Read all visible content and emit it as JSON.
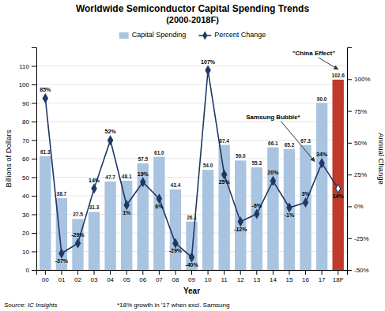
{
  "chart_data": {
    "type": "bar",
    "title": "Worldwide Semiconductor Capital Spending Trends",
    "subtitle": "(2000-2018F)",
    "xlabel": "Year",
    "ylabel": "Billions of Dollars",
    "y2label": "Annual Change",
    "categories": [
      "00",
      "01",
      "02",
      "03",
      "04",
      "05",
      "06",
      "07",
      "08",
      "09",
      "10",
      "11",
      "12",
      "13",
      "14",
      "15",
      "16",
      "17",
      "18F"
    ],
    "series": [
      {
        "name": "Capital Spending",
        "type": "bar",
        "color": "#a8c4e0",
        "colors": [
          "#a8c4e0",
          "#a8c4e0",
          "#a8c4e0",
          "#a8c4e0",
          "#a8c4e0",
          "#a8c4e0",
          "#a8c4e0",
          "#a8c4e0",
          "#a8c4e0",
          "#a8c4e0",
          "#a8c4e0",
          "#a8c4e0",
          "#a8c4e0",
          "#a8c4e0",
          "#a8c4e0",
          "#a8c4e0",
          "#a8c4e0",
          "#a8c4e0",
          "#c0392b"
        ],
        "values": [
          61.3,
          38.7,
          27.5,
          31.3,
          47.7,
          48.1,
          57.5,
          61.0,
          43.4,
          26.1,
          54.0,
          67.4,
          59.0,
          55.3,
          66.1,
          65.2,
          67.3,
          90.0,
          102.6
        ],
        "value_labels": [
          "61.3",
          "38.7",
          "27.5",
          "31.3",
          "47.7",
          "48.1",
          "57.5",
          "61.0",
          "43.4",
          "26.1",
          "54.0",
          "67.4",
          "59.0",
          "55.3",
          "66.1",
          "65.2",
          "67.3",
          "90.0",
          "102.6"
        ],
        "data_labels": true
      },
      {
        "name": "Percent Change",
        "type": "line",
        "axis": "y2",
        "color": "#1f3864",
        "marker": "diamond",
        "colors": [
          "#1f3864",
          "#1f3864",
          "#1f3864",
          "#1f3864",
          "#1f3864",
          "#1f3864",
          "#1f3864",
          "#1f3864",
          "#1f3864",
          "#1f3864",
          "#1f3864",
          "#1f3864",
          "#1f3864",
          "#1f3864",
          "#1f3864",
          "#1f3864",
          "#1f3864",
          "#1f3864",
          "#ffffff"
        ],
        "values": [
          85,
          -37,
          -29,
          14,
          52,
          1,
          19,
          6,
          -29,
          -40,
          107,
          25,
          -12,
          -6,
          20,
          -1,
          3,
          34,
          14
        ],
        "value_labels": [
          "85%",
          "-37%",
          "-29%",
          "14%",
          "52%",
          "1%",
          "19%",
          "6%",
          "-29%",
          "-40%",
          "107%",
          "25%",
          "-12%",
          "-6%",
          "20%",
          "-1%",
          "3%",
          "34%",
          "14%"
        ],
        "data_labels": true
      }
    ],
    "ylim": [
      0,
      120
    ],
    "yticks": [
      0,
      10,
      20,
      30,
      40,
      50,
      60,
      70,
      80,
      90,
      100,
      110
    ],
    "y2lim": [
      -50,
      125
    ],
    "y2ticks": [
      {
        "value": -50,
        "label": "-50%"
      },
      {
        "value": -25,
        "label": "-25%"
      },
      {
        "value": 0,
        "label": "0%"
      },
      {
        "value": 25,
        "label": "25%"
      },
      {
        "value": 50,
        "label": "50%"
      },
      {
        "value": 75,
        "label": "75%"
      },
      {
        "value": 100,
        "label": "100%"
      }
    ],
    "grid": true,
    "legend": "top",
    "annotations": [
      {
        "text": "\"China Effect\"",
        "x": "18F",
        "axis": "y"
      },
      {
        "text": "Samsung Bubble*",
        "x": "17",
        "axis": "y2"
      }
    ],
    "source": "Source: IC Insights",
    "footnote": "*18% growth in '17 when excl. Samsung"
  }
}
